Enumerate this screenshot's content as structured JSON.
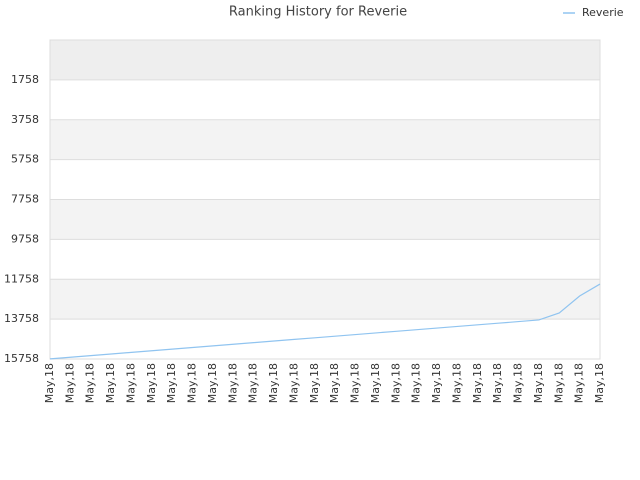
{
  "chart_data": {
    "type": "line",
    "title": "Ranking History for Reverie",
    "categories": [
      "May,18",
      "May,18",
      "May,18",
      "May,18",
      "May,18",
      "May,18",
      "May,18",
      "May,18",
      "May,18",
      "May,18",
      "May,18",
      "May,18",
      "May,18",
      "May,18",
      "May,18",
      "May,18",
      "May,18",
      "May,18",
      "May,18",
      "May,18",
      "May,18",
      "May,18",
      "May,18",
      "May,18",
      "May,18",
      "May,18",
      "May,18",
      "May,18"
    ],
    "series": [
      {
        "name": "Reverie",
        "color": "#90c4f0",
        "values": [
          15750,
          15669,
          15588,
          15506,
          15425,
          15344,
          15263,
          15181,
          15100,
          15019,
          14938,
          14856,
          14775,
          14694,
          14613,
          14531,
          14450,
          14369,
          14288,
          14206,
          14125,
          14044,
          13963,
          13881,
          13800,
          13450,
          12600,
          12000
        ]
      }
    ],
    "ylim": [
      15758,
      -242
    ],
    "yticks": [
      1758,
      3758,
      5758,
      7758,
      9758,
      11758,
      13758,
      15758
    ],
    "grid": true,
    "legend": "top-right"
  }
}
